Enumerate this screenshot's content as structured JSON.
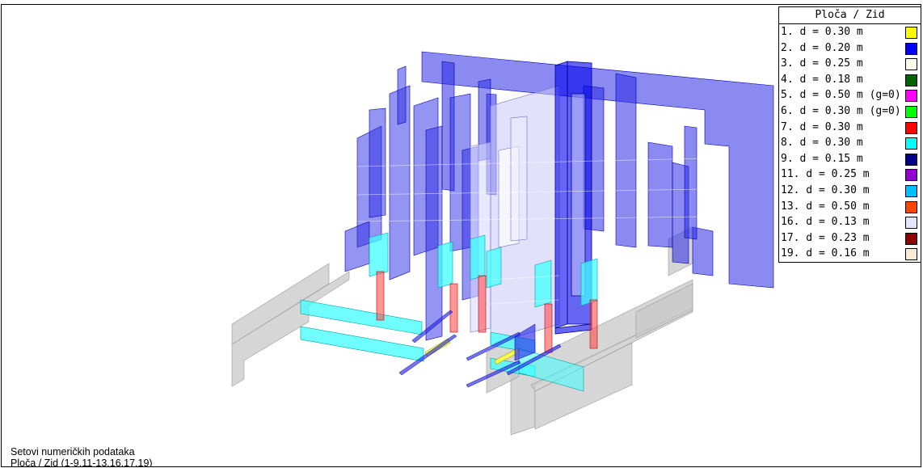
{
  "legend": {
    "title": "Ploča / Zid",
    "items": [
      {
        "label": "1. d = 0.30 m",
        "color": "#ffff00"
      },
      {
        "label": "2. d = 0.20 m",
        "color": "#0000ff"
      },
      {
        "label": "3. d = 0.25 m",
        "color": "#fffff0"
      },
      {
        "label": "4. d = 0.18 m",
        "color": "#006400"
      },
      {
        "label": "5. d = 0.50 m (g=0)",
        "color": "#ff00ff"
      },
      {
        "label": "6. d = 0.30 m (g=0)",
        "color": "#00ff00"
      },
      {
        "label": "7. d = 0.30 m",
        "color": "#ff0000"
      },
      {
        "label": "8. d = 0.30 m",
        "color": "#00ffff"
      },
      {
        "label": "9. d = 0.15 m",
        "color": "#00008b"
      },
      {
        "label": "11. d = 0.25 m",
        "color": "#9400d3"
      },
      {
        "label": "12. d = 0.30 m",
        "color": "#00bfff"
      },
      {
        "label": "13. d = 0.50 m",
        "color": "#ff4500"
      },
      {
        "label": "16. d = 0.13 m",
        "color": "#e6e6fa"
      },
      {
        "label": "17. d = 0.23 m",
        "color": "#8b0000"
      },
      {
        "label": "19. d = 0.16 m",
        "color": "#faebd7"
      }
    ]
  },
  "caption": {
    "line1": "Setovi numeričkih podataka",
    "line2": "Ploča / Zid (1-9,11-13,16,17,19)"
  }
}
